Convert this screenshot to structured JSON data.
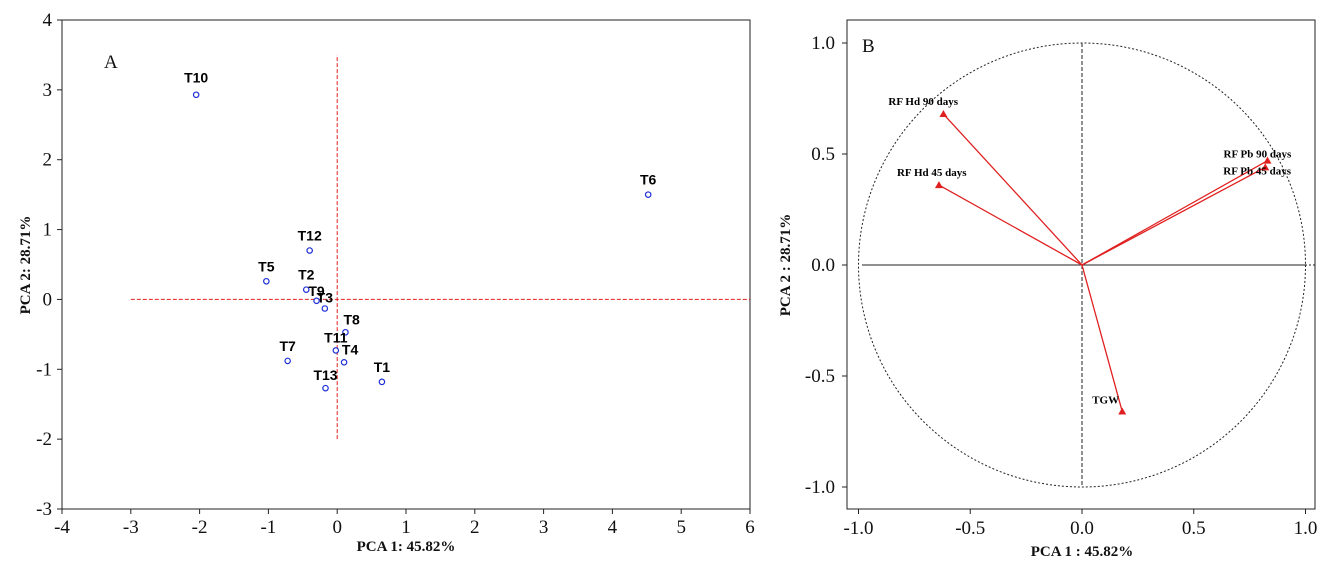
{
  "chart_data": [
    {
      "type": "scatter",
      "panel_label": "A",
      "xlabel": "PCA 1: 45.82%",
      "ylabel": "PCA 2: 28.71%",
      "xlim": [
        -4,
        6
      ],
      "ylim": [
        -3,
        4
      ],
      "xticks": [
        -4,
        -3,
        -2,
        -1,
        0,
        1,
        2,
        3,
        4,
        5,
        6
      ],
      "yticks": [
        -3,
        -2,
        -1,
        0,
        1,
        2,
        3,
        4
      ],
      "reference_lines": {
        "horizontal": {
          "y": 0,
          "x_range": [
            -3,
            6
          ]
        },
        "vertical": {
          "x": 0,
          "y_range": [
            -2,
            3.5
          ]
        }
      },
      "points": [
        {
          "label": "T10",
          "x": -2.05,
          "y": 2.93
        },
        {
          "label": "T6",
          "x": 4.52,
          "y": 1.5
        },
        {
          "label": "T12",
          "x": -0.4,
          "y": 0.7
        },
        {
          "label": "T5",
          "x": -1.03,
          "y": 0.26
        },
        {
          "label": "T2",
          "x": -0.45,
          "y": 0.14
        },
        {
          "label": "T9",
          "x": -0.3,
          "y": -0.02
        },
        {
          "label": "T3",
          "x": -0.18,
          "y": -0.13
        },
        {
          "label": "T8",
          "x": 0.12,
          "y": -0.47
        },
        {
          "label": "T11",
          "x": -0.02,
          "y": -0.73
        },
        {
          "label": "T4",
          "x": 0.1,
          "y": -0.9
        },
        {
          "label": "T7",
          "x": -0.72,
          "y": -0.88
        },
        {
          "label": "T1",
          "x": 0.65,
          "y": -1.18
        },
        {
          "label": "T13",
          "x": -0.17,
          "y": -1.27
        }
      ],
      "colors": {
        "points": "#1f2fd6",
        "reference": "#e02020"
      }
    },
    {
      "type": "scatter",
      "panel_label": "B",
      "xlabel": "PCA 1 : 45.82%",
      "ylabel": "PCA 2 : 28.71%",
      "xlim": [
        -1.0,
        1.0
      ],
      "ylim": [
        -1.0,
        1.0
      ],
      "xticks": [
        "-1.0",
        "-0.5",
        "0.0",
        "0.5",
        "1.0"
      ],
      "yticks": [
        "-1.0",
        "-0.5",
        "0.0",
        "0.5",
        "1.0"
      ],
      "unit_circle": true,
      "vectors": [
        {
          "label": "RF Hd 90 days",
          "x": -0.62,
          "y": 0.68
        },
        {
          "label": "RF Hd 45 days",
          "x": -0.64,
          "y": 0.36
        },
        {
          "label": "RF Pb 90 days",
          "x": 0.83,
          "y": 0.47
        },
        {
          "label": "RF Pb 45 days",
          "x": 0.82,
          "y": 0.44
        },
        {
          "label": "TGW",
          "x": 0.18,
          "y": -0.66
        }
      ],
      "colors": {
        "vectors": "#e02020"
      }
    }
  ]
}
